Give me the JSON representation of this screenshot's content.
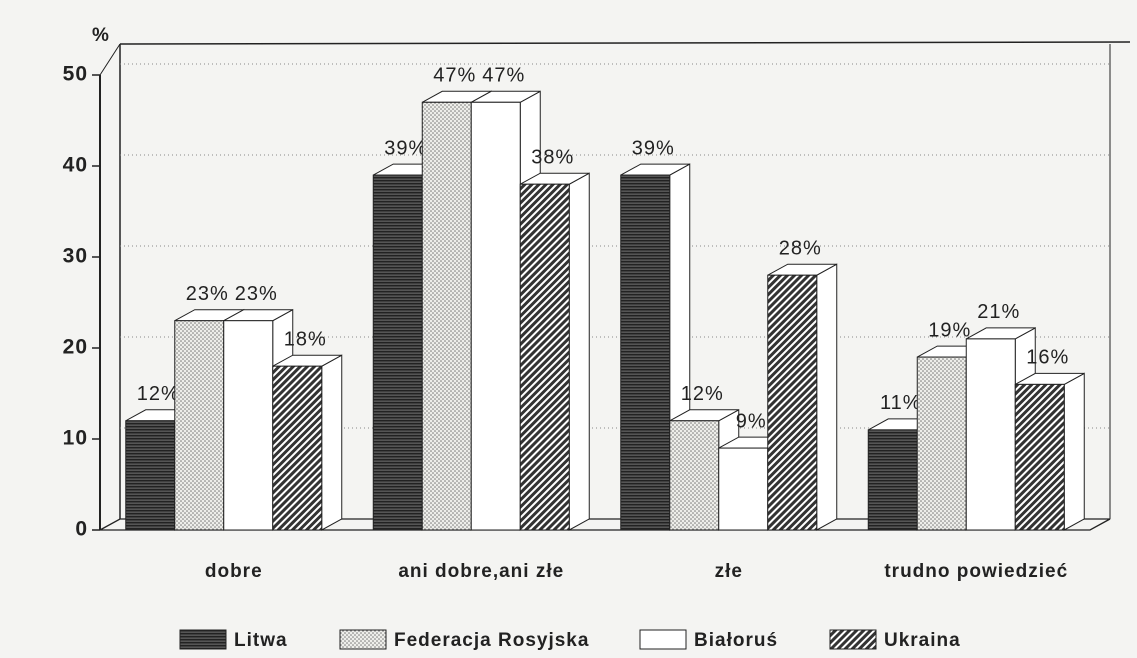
{
  "chart_data": {
    "type": "bar3d",
    "y_label": "%",
    "categories": [
      "dobre",
      "ani dobre,ani złe",
      "złe",
      "trudno powiedzieć"
    ],
    "series": [
      {
        "name": "Litwa",
        "color": "#3a3a3a",
        "values": [
          12,
          39,
          39,
          11
        ],
        "value_labels": [
          "12%",
          "39%",
          "39%",
          "11%"
        ]
      },
      {
        "name": "Federacja Rosyjska",
        "color": "#d8d8d4",
        "values": [
          23,
          47,
          12,
          19
        ],
        "value_labels": [
          "23%",
          "47%",
          "12%",
          "19%"
        ]
      },
      {
        "name": "Białoruś",
        "color": "#ffffff",
        "values": [
          23,
          47,
          9,
          21
        ],
        "value_labels": [
          "23%",
          "47%",
          "9%",
          "21%"
        ]
      },
      {
        "name": "Ukraina",
        "color": "#555555",
        "values": [
          18,
          38,
          28,
          16
        ],
        "value_labels": [
          "18%",
          "38%",
          "28%",
          "16%"
        ]
      }
    ],
    "ylim": [
      0,
      50
    ],
    "yticks": [
      0,
      10,
      20,
      30,
      40,
      50
    ],
    "grid": true,
    "legend": "bottom"
  }
}
